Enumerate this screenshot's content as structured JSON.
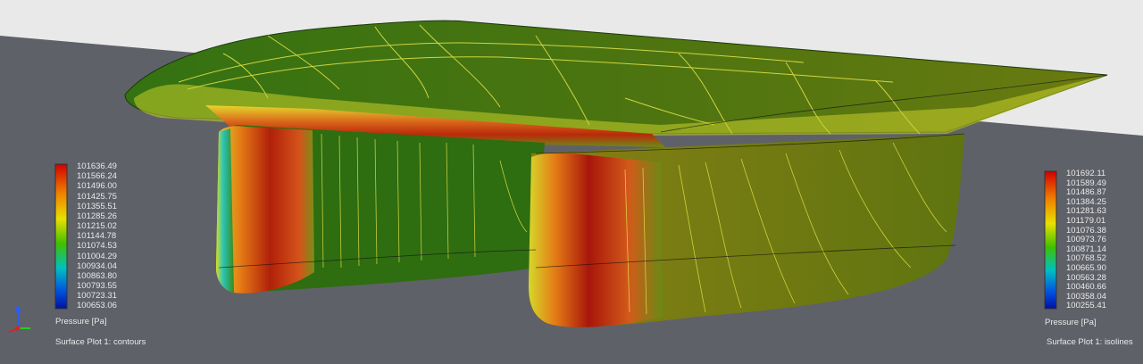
{
  "left_legend": {
    "ticks": [
      "101636.49",
      "101566.24",
      "101496.00",
      "101425.75",
      "101355.51",
      "101285.26",
      "101215.02",
      "101144.78",
      "101074.53",
      "101004.29",
      "100934.04",
      "100863.80",
      "100793.55",
      "100723.31",
      "100653.06"
    ],
    "unit": "Pressure [Pa]",
    "plot_label": "Surface Plot 1: contours"
  },
  "right_legend": {
    "ticks": [
      "101692.11",
      "101589.49",
      "101486.87",
      "101384.25",
      "101281.63",
      "101179.01",
      "101076.38",
      "100973.76",
      "100871.14",
      "100768.52",
      "100665.90",
      "100563.28",
      "100460.66",
      "100358.04",
      "100255.41"
    ],
    "unit": "Pressure [Pa]",
    "plot_label": "Surface Plot 1: isolines"
  },
  "colors": {
    "background": "#5f6168",
    "floor_top": "#e9e9e9",
    "model_green": "#2e6d10",
    "model_yellow": "#d8d62a",
    "model_red": "#b01a08",
    "isoline": "#e6e64a"
  },
  "icons": [
    "axis-triad-icon"
  ]
}
